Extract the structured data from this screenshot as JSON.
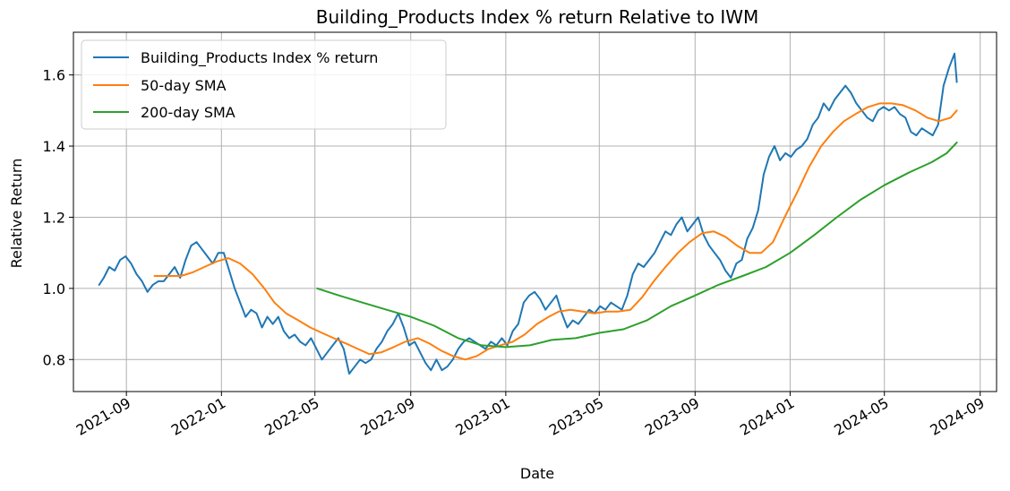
{
  "chart_data": {
    "type": "line",
    "title": "Building_Products Index % return Relative to IWM",
    "xlabel": "Date",
    "ylabel": "Relative Return",
    "xlim": [
      "2021-06-25",
      "2024-09-22"
    ],
    "ylim": [
      0.71,
      1.72
    ],
    "grid": true,
    "legend_position": "top-left",
    "x_ticks": [
      "2021-09",
      "2022-01",
      "2022-05",
      "2022-09",
      "2023-01",
      "2023-05",
      "2023-09",
      "2024-01",
      "2024-05",
      "2024-09"
    ],
    "x_tick_dates": [
      "2021-09-01",
      "2022-01-01",
      "2022-05-01",
      "2022-09-01",
      "2023-01-01",
      "2023-05-01",
      "2023-09-01",
      "2024-01-01",
      "2024-05-01",
      "2024-09-01"
    ],
    "y_ticks": [
      "0.8",
      "1.0",
      "1.2",
      "1.4",
      "1.6"
    ],
    "y_tick_values": [
      0.8,
      1.0,
      1.2,
      1.4,
      1.6
    ],
    "series": [
      {
        "name": "Building_Products Index % return",
        "color": "#1f77b4",
        "points": [
          [
            "2021-07-28",
            1.01
          ],
          [
            "2021-08-03",
            1.03
          ],
          [
            "2021-08-10",
            1.06
          ],
          [
            "2021-08-17",
            1.05
          ],
          [
            "2021-08-24",
            1.08
          ],
          [
            "2021-08-31",
            1.09
          ],
          [
            "2021-09-07",
            1.07
          ],
          [
            "2021-09-14",
            1.04
          ],
          [
            "2021-09-21",
            1.02
          ],
          [
            "2021-09-28",
            0.99
          ],
          [
            "2021-10-05",
            1.01
          ],
          [
            "2021-10-12",
            1.02
          ],
          [
            "2021-10-19",
            1.02
          ],
          [
            "2021-10-26",
            1.04
          ],
          [
            "2021-11-02",
            1.06
          ],
          [
            "2021-11-09",
            1.03
          ],
          [
            "2021-11-16",
            1.08
          ],
          [
            "2021-11-23",
            1.12
          ],
          [
            "2021-11-30",
            1.13
          ],
          [
            "2021-12-07",
            1.11
          ],
          [
            "2021-12-14",
            1.09
          ],
          [
            "2021-12-21",
            1.07
          ],
          [
            "2021-12-28",
            1.1
          ],
          [
            "2022-01-04",
            1.1
          ],
          [
            "2022-01-11",
            1.05
          ],
          [
            "2022-01-18",
            1.0
          ],
          [
            "2022-01-25",
            0.96
          ],
          [
            "2022-02-01",
            0.92
          ],
          [
            "2022-02-08",
            0.94
          ],
          [
            "2022-02-15",
            0.93
          ],
          [
            "2022-02-22",
            0.89
          ],
          [
            "2022-03-01",
            0.92
          ],
          [
            "2022-03-08",
            0.9
          ],
          [
            "2022-03-15",
            0.92
          ],
          [
            "2022-03-22",
            0.88
          ],
          [
            "2022-03-29",
            0.86
          ],
          [
            "2022-04-05",
            0.87
          ],
          [
            "2022-04-12",
            0.85
          ],
          [
            "2022-04-19",
            0.84
          ],
          [
            "2022-04-26",
            0.86
          ],
          [
            "2022-05-03",
            0.83
          ],
          [
            "2022-05-10",
            0.8
          ],
          [
            "2022-05-17",
            0.82
          ],
          [
            "2022-05-24",
            0.84
          ],
          [
            "2022-05-31",
            0.86
          ],
          [
            "2022-06-07",
            0.83
          ],
          [
            "2022-06-14",
            0.76
          ],
          [
            "2022-06-21",
            0.78
          ],
          [
            "2022-06-28",
            0.8
          ],
          [
            "2022-07-05",
            0.79
          ],
          [
            "2022-07-12",
            0.8
          ],
          [
            "2022-07-19",
            0.83
          ],
          [
            "2022-07-26",
            0.85
          ],
          [
            "2022-08-02",
            0.88
          ],
          [
            "2022-08-09",
            0.9
          ],
          [
            "2022-08-16",
            0.93
          ],
          [
            "2022-08-23",
            0.89
          ],
          [
            "2022-08-30",
            0.84
          ],
          [
            "2022-09-06",
            0.85
          ],
          [
            "2022-09-13",
            0.82
          ],
          [
            "2022-09-20",
            0.79
          ],
          [
            "2022-09-27",
            0.77
          ],
          [
            "2022-10-04",
            0.8
          ],
          [
            "2022-10-11",
            0.77
          ],
          [
            "2022-10-18",
            0.78
          ],
          [
            "2022-10-25",
            0.8
          ],
          [
            "2022-11-01",
            0.83
          ],
          [
            "2022-11-08",
            0.85
          ],
          [
            "2022-11-15",
            0.86
          ],
          [
            "2022-11-22",
            0.85
          ],
          [
            "2022-11-29",
            0.84
          ],
          [
            "2022-12-06",
            0.83
          ],
          [
            "2022-12-13",
            0.85
          ],
          [
            "2022-12-20",
            0.84
          ],
          [
            "2022-12-27",
            0.86
          ],
          [
            "2023-01-03",
            0.84
          ],
          [
            "2023-01-10",
            0.88
          ],
          [
            "2023-01-17",
            0.9
          ],
          [
            "2023-01-24",
            0.96
          ],
          [
            "2023-01-31",
            0.98
          ],
          [
            "2023-02-07",
            0.99
          ],
          [
            "2023-02-14",
            0.97
          ],
          [
            "2023-02-21",
            0.94
          ],
          [
            "2023-02-28",
            0.96
          ],
          [
            "2023-03-07",
            0.98
          ],
          [
            "2023-03-14",
            0.93
          ],
          [
            "2023-03-21",
            0.89
          ],
          [
            "2023-03-28",
            0.91
          ],
          [
            "2023-04-04",
            0.9
          ],
          [
            "2023-04-11",
            0.92
          ],
          [
            "2023-04-18",
            0.94
          ],
          [
            "2023-04-25",
            0.93
          ],
          [
            "2023-05-02",
            0.95
          ],
          [
            "2023-05-09",
            0.94
          ],
          [
            "2023-05-16",
            0.96
          ],
          [
            "2023-05-23",
            0.95
          ],
          [
            "2023-05-30",
            0.94
          ],
          [
            "2023-06-06",
            0.98
          ],
          [
            "2023-06-13",
            1.04
          ],
          [
            "2023-06-20",
            1.07
          ],
          [
            "2023-06-27",
            1.06
          ],
          [
            "2023-07-04",
            1.08
          ],
          [
            "2023-07-11",
            1.1
          ],
          [
            "2023-07-18",
            1.13
          ],
          [
            "2023-07-25",
            1.16
          ],
          [
            "2023-08-01",
            1.15
          ],
          [
            "2023-08-08",
            1.18
          ],
          [
            "2023-08-15",
            1.2
          ],
          [
            "2023-08-22",
            1.16
          ],
          [
            "2023-08-29",
            1.18
          ],
          [
            "2023-09-05",
            1.2
          ],
          [
            "2023-09-12",
            1.15
          ],
          [
            "2023-09-19",
            1.12
          ],
          [
            "2023-09-26",
            1.1
          ],
          [
            "2023-10-03",
            1.08
          ],
          [
            "2023-10-10",
            1.05
          ],
          [
            "2023-10-17",
            1.03
          ],
          [
            "2023-10-24",
            1.07
          ],
          [
            "2023-10-31",
            1.08
          ],
          [
            "2023-11-07",
            1.14
          ],
          [
            "2023-11-14",
            1.17
          ],
          [
            "2023-11-21",
            1.22
          ],
          [
            "2023-11-28",
            1.32
          ],
          [
            "2023-12-05",
            1.37
          ],
          [
            "2023-12-12",
            1.4
          ],
          [
            "2023-12-19",
            1.36
          ],
          [
            "2023-12-26",
            1.38
          ],
          [
            "2024-01-02",
            1.37
          ],
          [
            "2024-01-09",
            1.39
          ],
          [
            "2024-01-16",
            1.4
          ],
          [
            "2024-01-23",
            1.42
          ],
          [
            "2024-01-30",
            1.46
          ],
          [
            "2024-02-06",
            1.48
          ],
          [
            "2024-02-13",
            1.52
          ],
          [
            "2024-02-20",
            1.5
          ],
          [
            "2024-02-27",
            1.53
          ],
          [
            "2024-03-05",
            1.55
          ],
          [
            "2024-03-12",
            1.57
          ],
          [
            "2024-03-19",
            1.55
          ],
          [
            "2024-03-26",
            1.52
          ],
          [
            "2024-04-02",
            1.5
          ],
          [
            "2024-04-09",
            1.48
          ],
          [
            "2024-04-16",
            1.47
          ],
          [
            "2024-04-23",
            1.5
          ],
          [
            "2024-04-30",
            1.51
          ],
          [
            "2024-05-07",
            1.5
          ],
          [
            "2024-05-14",
            1.51
          ],
          [
            "2024-05-21",
            1.49
          ],
          [
            "2024-05-28",
            1.48
          ],
          [
            "2024-06-04",
            1.44
          ],
          [
            "2024-06-11",
            1.43
          ],
          [
            "2024-06-18",
            1.45
          ],
          [
            "2024-06-25",
            1.44
          ],
          [
            "2024-07-02",
            1.43
          ],
          [
            "2024-07-09",
            1.46
          ],
          [
            "2024-07-16",
            1.57
          ],
          [
            "2024-07-23",
            1.62
          ],
          [
            "2024-07-30",
            1.66
          ],
          [
            "2024-08-02",
            1.58
          ]
        ]
      },
      {
        "name": "50-day SMA",
        "color": "#ff7f0e",
        "points": [
          [
            "2021-10-07",
            1.035
          ],
          [
            "2021-10-25",
            1.035
          ],
          [
            "2021-11-10",
            1.035
          ],
          [
            "2021-11-25",
            1.045
          ],
          [
            "2021-12-10",
            1.06
          ],
          [
            "2021-12-25",
            1.075
          ],
          [
            "2022-01-10",
            1.085
          ],
          [
            "2022-01-25",
            1.07
          ],
          [
            "2022-02-10",
            1.04
          ],
          [
            "2022-02-25",
            1.0
          ],
          [
            "2022-03-10",
            0.96
          ],
          [
            "2022-03-25",
            0.93
          ],
          [
            "2022-04-10",
            0.91
          ],
          [
            "2022-04-25",
            0.89
          ],
          [
            "2022-05-10",
            0.875
          ],
          [
            "2022-05-25",
            0.86
          ],
          [
            "2022-06-10",
            0.845
          ],
          [
            "2022-06-25",
            0.83
          ],
          [
            "2022-07-10",
            0.815
          ],
          [
            "2022-07-25",
            0.82
          ],
          [
            "2022-08-10",
            0.835
          ],
          [
            "2022-08-25",
            0.85
          ],
          [
            "2022-09-10",
            0.86
          ],
          [
            "2022-09-25",
            0.845
          ],
          [
            "2022-10-10",
            0.825
          ],
          [
            "2022-10-25",
            0.81
          ],
          [
            "2022-11-10",
            0.8
          ],
          [
            "2022-11-25",
            0.81
          ],
          [
            "2022-12-10",
            0.83
          ],
          [
            "2022-12-25",
            0.84
          ],
          [
            "2023-01-10",
            0.85
          ],
          [
            "2023-01-25",
            0.87
          ],
          [
            "2023-02-10",
            0.9
          ],
          [
            "2023-02-25",
            0.92
          ],
          [
            "2023-03-10",
            0.935
          ],
          [
            "2023-03-25",
            0.94
          ],
          [
            "2023-04-10",
            0.935
          ],
          [
            "2023-04-25",
            0.93
          ],
          [
            "2023-05-10",
            0.935
          ],
          [
            "2023-05-25",
            0.935
          ],
          [
            "2023-06-10",
            0.94
          ],
          [
            "2023-06-25",
            0.975
          ],
          [
            "2023-07-10",
            1.02
          ],
          [
            "2023-07-25",
            1.06
          ],
          [
            "2023-08-10",
            1.1
          ],
          [
            "2023-08-25",
            1.13
          ],
          [
            "2023-09-10",
            1.155
          ],
          [
            "2023-09-25",
            1.16
          ],
          [
            "2023-10-10",
            1.145
          ],
          [
            "2023-10-25",
            1.12
          ],
          [
            "2023-11-10",
            1.1
          ],
          [
            "2023-11-25",
            1.1
          ],
          [
            "2023-12-10",
            1.13
          ],
          [
            "2023-12-25",
            1.2
          ],
          [
            "2024-01-10",
            1.27
          ],
          [
            "2024-01-25",
            1.34
          ],
          [
            "2024-02-10",
            1.4
          ],
          [
            "2024-02-25",
            1.44
          ],
          [
            "2024-03-10",
            1.47
          ],
          [
            "2024-03-25",
            1.49
          ],
          [
            "2024-04-10",
            1.51
          ],
          [
            "2024-04-25",
            1.52
          ],
          [
            "2024-05-10",
            1.52
          ],
          [
            "2024-05-25",
            1.515
          ],
          [
            "2024-06-10",
            1.5
          ],
          [
            "2024-06-25",
            1.48
          ],
          [
            "2024-07-10",
            1.47
          ],
          [
            "2024-07-25",
            1.48
          ],
          [
            "2024-08-02",
            1.5
          ]
        ]
      },
      {
        "name": "200-day SMA",
        "color": "#2ca02c",
        "points": [
          [
            "2022-05-04",
            1.0
          ],
          [
            "2022-06-01",
            0.98
          ],
          [
            "2022-07-01",
            0.96
          ],
          [
            "2022-08-01",
            0.94
          ],
          [
            "2022-09-01",
            0.92
          ],
          [
            "2022-10-01",
            0.895
          ],
          [
            "2022-11-01",
            0.86
          ],
          [
            "2022-12-01",
            0.84
          ],
          [
            "2023-01-01",
            0.835
          ],
          [
            "2023-02-01",
            0.84
          ],
          [
            "2023-03-01",
            0.855
          ],
          [
            "2023-04-01",
            0.86
          ],
          [
            "2023-05-01",
            0.875
          ],
          [
            "2023-06-01",
            0.885
          ],
          [
            "2023-07-01",
            0.91
          ],
          [
            "2023-08-01",
            0.95
          ],
          [
            "2023-09-01",
            0.98
          ],
          [
            "2023-10-01",
            1.01
          ],
          [
            "2023-11-01",
            1.035
          ],
          [
            "2023-12-01",
            1.06
          ],
          [
            "2024-01-01",
            1.1
          ],
          [
            "2024-02-01",
            1.15
          ],
          [
            "2024-03-01",
            1.2
          ],
          [
            "2024-04-01",
            1.25
          ],
          [
            "2024-05-01",
            1.29
          ],
          [
            "2024-06-01",
            1.325
          ],
          [
            "2024-07-01",
            1.355
          ],
          [
            "2024-07-20",
            1.38
          ],
          [
            "2024-08-02",
            1.41
          ]
        ]
      }
    ]
  }
}
